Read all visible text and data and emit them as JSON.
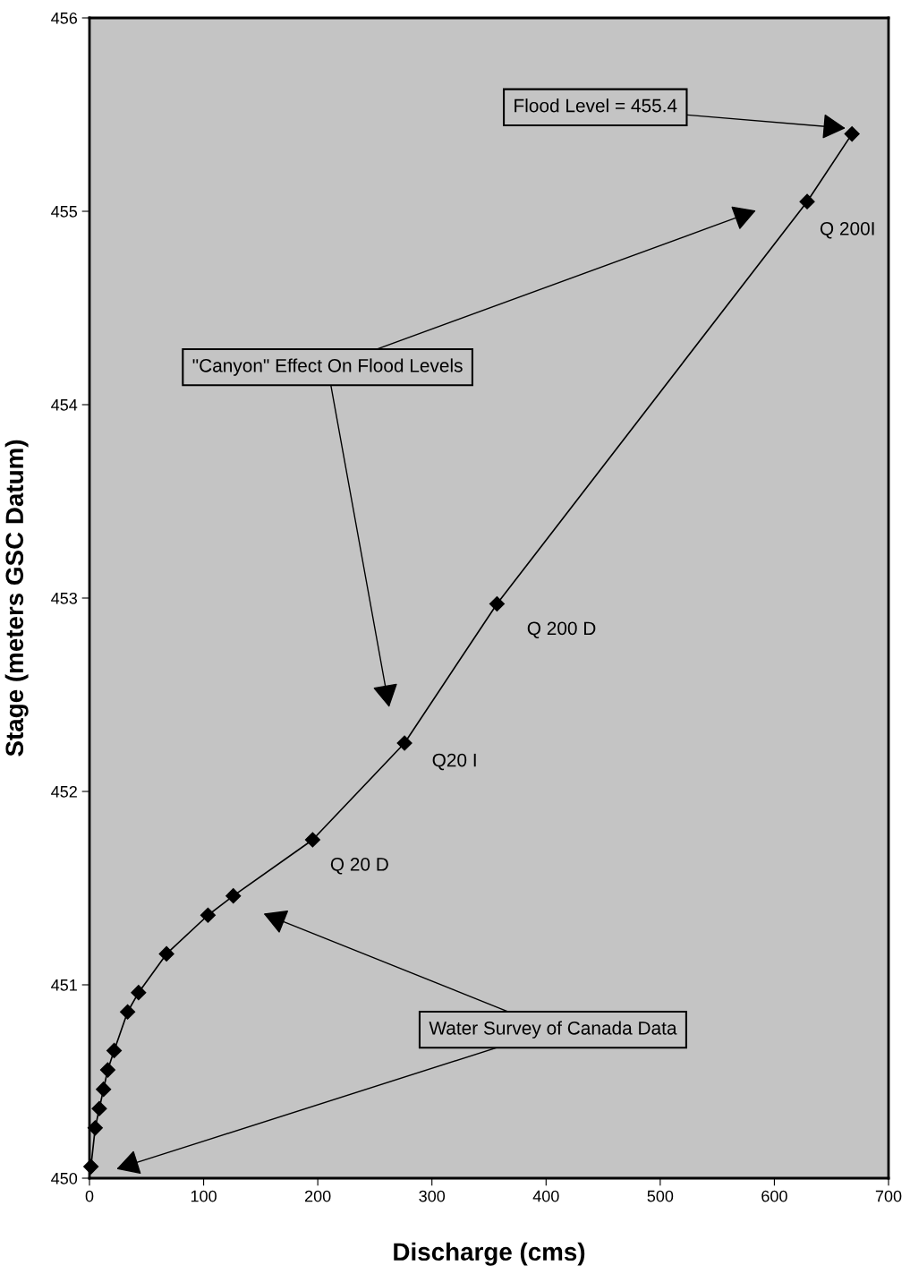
{
  "chart_data": {
    "type": "line",
    "xlabel": "Discharge (cms)",
    "ylabel": "Stage (meters GSC Datum)",
    "x": [
      1.3,
      5,
      8.6,
      12.3,
      16,
      21.6,
      33.4,
      43,
      67.5,
      103.8,
      126,
      195.5,
      276,
      357,
      628.7,
      668
    ],
    "series": [
      {
        "color": "#000000",
        "values": [
          450.06,
          450.26,
          450.36,
          450.46,
          450.56,
          450.66,
          450.86,
          450.96,
          451.16,
          451.36,
          451.46,
          451.75,
          452.25,
          452.97,
          455.05,
          455.4
        ]
      }
    ],
    "marker": "diamond",
    "line_style": "solid",
    "grid": false,
    "legend": false,
    "xlim": [
      0,
      700
    ],
    "xticks": [
      0,
      100,
      200,
      300,
      400,
      500,
      600,
      700
    ],
    "ylim": [
      450,
      456
    ],
    "yticks": [
      450,
      451,
      452,
      453,
      454,
      455,
      456
    ],
    "annotations": [
      {
        "text": "Q 20 D",
        "x": 195.5,
        "y": 451.75
      },
      {
        "text": "Q20 I",
        "x": 276,
        "y": 452.25
      },
      {
        "text": "Q 200 D",
        "x": 357,
        "y": 452.97
      },
      {
        "text": "Q 200I",
        "x": 628.7,
        "y": 455.05
      },
      "Flood Level = 455.4",
      "\"Canyon\" Effect On Flood Levels",
      "Water Survey of Canada Data"
    ]
  }
}
